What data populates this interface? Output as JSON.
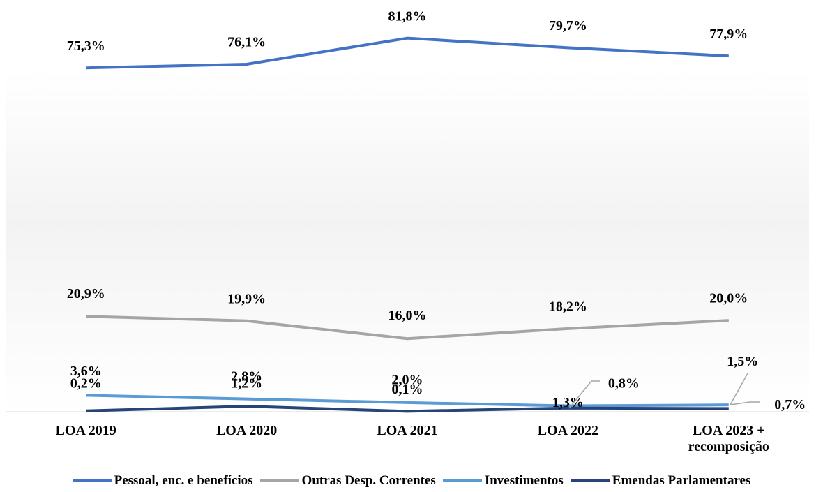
{
  "chart_data": {
    "type": "line",
    "categories": [
      "LOA 2019",
      "LOA 2020",
      "LOA 2021",
      "LOA 2022",
      "LOA 2023 + recomposição"
    ],
    "ylim": [
      0,
      90
    ],
    "legend": "bottom",
    "series": [
      {
        "name": "Pessoal, enc. e benefícios",
        "color": "#4472c4",
        "values": [
          75.3,
          76.1,
          81.8,
          79.7,
          77.9
        ],
        "value_labels": [
          "75,3%",
          "76,1%",
          "81,8%",
          "79,7%",
          "77,9%"
        ]
      },
      {
        "name": "Outras Desp. Correntes",
        "color": "#a5a5a5",
        "values": [
          20.9,
          19.9,
          16.0,
          18.2,
          20.0
        ],
        "value_labels": [
          "20,9%",
          "19,9%",
          "16,0%",
          "18,2%",
          "20,0%"
        ]
      },
      {
        "name": "Investimentos",
        "color": "#5b9bd5",
        "values": [
          3.6,
          2.8,
          2.0,
          1.3,
          1.5
        ],
        "value_labels": [
          "3,6%",
          "2,8%",
          "2,0%",
          "1,3%",
          "1,5%"
        ]
      },
      {
        "name": "Emendas Parlamentares",
        "color": "#264478",
        "values": [
          0.2,
          1.2,
          0.1,
          0.8,
          0.7
        ],
        "value_labels": [
          "0,2%",
          "1,2%",
          "0,1%",
          "0,8%",
          "0,7%"
        ]
      }
    ]
  }
}
